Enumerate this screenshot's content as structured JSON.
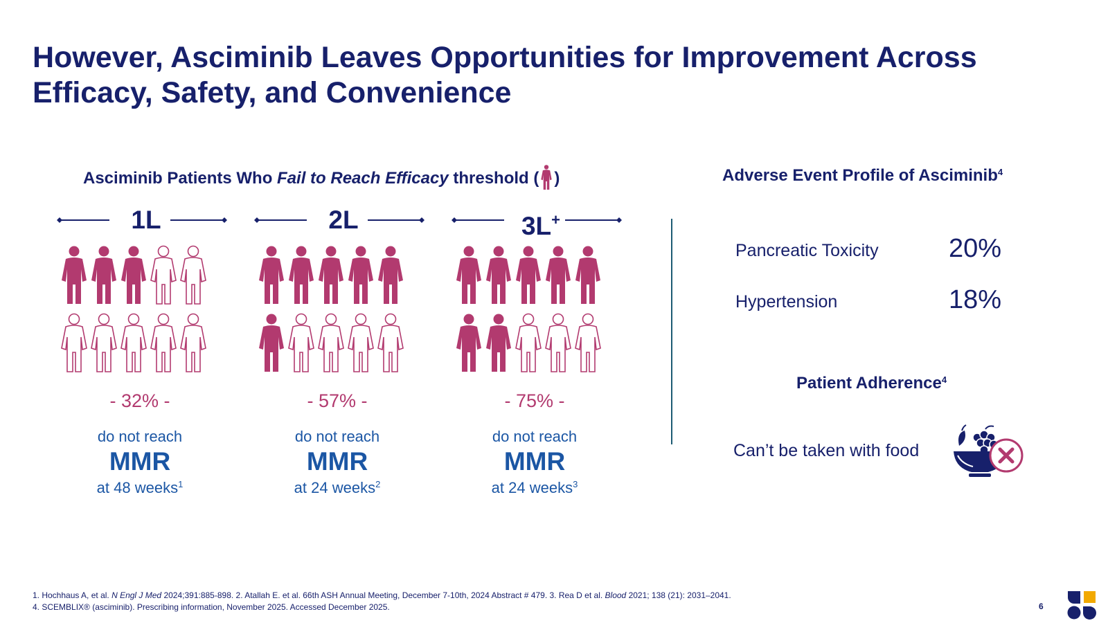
{
  "title": {
    "line1": "However, Asciminib Leaves Opportunities for Improvement Across",
    "line2": "Efficacy, Safety, and Convenience"
  },
  "efficacy": {
    "heading_pre": "Asciminib Patients Who ",
    "heading_em": "Fail to Reach Efficacy",
    "heading_post": " threshold (",
    "heading_close": ")",
    "columns": [
      {
        "line": "1L",
        "line_sup": "",
        "filled": 3,
        "total": 10,
        "percent": "- 32% -",
        "desc": "do not reach",
        "metric": "MMR",
        "timepoint": "at 48 weeks",
        "ref": "1"
      },
      {
        "line": "2L",
        "line_sup": "",
        "filled": 6,
        "total": 10,
        "percent": "- 57% -",
        "desc": "do not reach",
        "metric": "MMR",
        "timepoint": "at 24 weeks",
        "ref": "2"
      },
      {
        "line": "3L",
        "line_sup": "+",
        "filled": 7,
        "total": 10,
        "percent": "- 75% -",
        "desc": "do not reach",
        "metric": "MMR",
        "timepoint": "at 24 weeks",
        "ref": "3"
      }
    ],
    "colors": {
      "filled": "#b23a6f",
      "outline": "#b23a6f",
      "navy": "#17206b",
      "blue": "#1b56a4"
    }
  },
  "adverse_events": {
    "heading": "Adverse Event Profile of Asciminib",
    "heading_ref": "4",
    "items": [
      {
        "name": "Pancreatic Toxicity",
        "value": "20%"
      },
      {
        "name": "Hypertension",
        "value": "18%"
      }
    ]
  },
  "adherence": {
    "heading": "Patient Adherence",
    "heading_ref": "4",
    "text": "Can’t be taken with food",
    "icon": "fruit-bowl-no-icon"
  },
  "references": {
    "line1_a": "1. Hochhaus A, et al. ",
    "line1_b": "N Engl J Med",
    "line1_c": " 2024;391:885-898. 2. Atallah E. et al. 66th ASH Annual Meeting, December 7-10th, 2024 Abstract # 479. 3. Rea D et al. ",
    "line1_d": "Blood",
    "line1_e": " 2021; 138 (21): 2031–2041.",
    "line2": "4. SCEMBLIX® (asciminib). Prescribing information, November 2025. Accessed December 2025."
  },
  "page_number": "6",
  "logo_colors": [
    "#17206b",
    "#f2a900"
  ]
}
